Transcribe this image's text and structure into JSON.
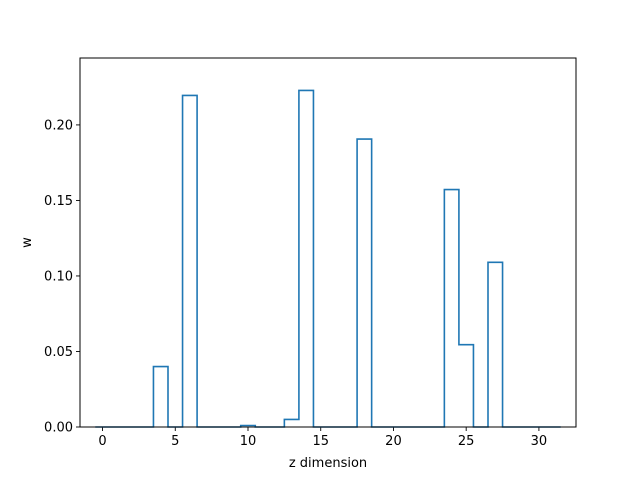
{
  "chart_data": {
    "type": "line",
    "style": "step",
    "title": "",
    "xlabel": "z dimension",
    "ylabel": "w",
    "xlim": [
      -1.55,
      32.55
    ],
    "ylim": [
      0,
      0.2443
    ],
    "xticks": [
      0,
      5,
      10,
      15,
      20,
      25,
      30
    ],
    "xtick_labels": [
      "0",
      "5",
      "10",
      "15",
      "20",
      "25",
      "30"
    ],
    "yticks": [
      0.0,
      0.05,
      0.1,
      0.15,
      0.2
    ],
    "ytick_labels": [
      "0.00",
      "0.05",
      "0.10",
      "0.15",
      "0.20"
    ],
    "grid": false,
    "series": [
      {
        "color": "#1f77b4",
        "x": [
          0,
          1,
          2,
          3,
          4,
          5,
          6,
          7,
          8,
          9,
          10,
          11,
          12,
          13,
          14,
          15,
          16,
          17,
          18,
          19,
          20,
          21,
          22,
          23,
          24,
          25,
          26,
          27,
          28,
          29,
          30,
          31
        ],
        "values": [
          0,
          0,
          0,
          0,
          0.04,
          0,
          0.2195,
          0,
          0,
          0,
          0.001,
          0,
          0,
          0.005,
          0.2228,
          0,
          0,
          0,
          0.1906,
          0,
          0,
          0,
          0,
          0,
          0.1572,
          0.0545,
          0,
          0.109,
          0,
          0,
          0,
          0
        ]
      }
    ]
  }
}
